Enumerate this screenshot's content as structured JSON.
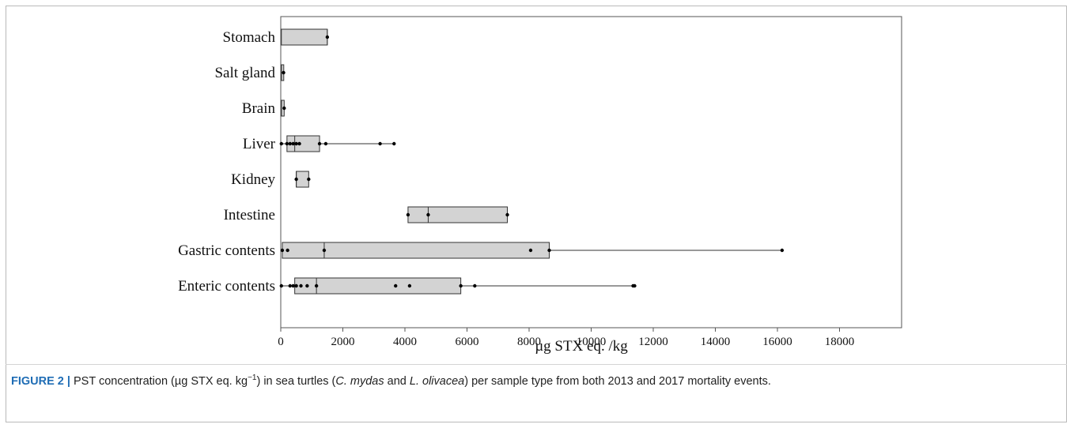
{
  "chart_data": {
    "type": "box",
    "xlabel": "µg STX eq. /kg",
    "xlim": [
      0,
      20000
    ],
    "xticks": [
      0,
      2000,
      4000,
      6000,
      8000,
      10000,
      12000,
      14000,
      16000,
      18000
    ],
    "xtick_labels": [
      "0",
      "2000",
      "4000",
      "6000",
      "8000",
      "10000",
      "12000",
      "14000",
      "16000",
      "18000"
    ],
    "grid": false,
    "legend": "none",
    "colors": {
      "box_fill": "#d3d3d3",
      "box_stroke": "#333333",
      "point": "#000000"
    },
    "categories": [
      {
        "label": "Stomach",
        "q1": 20,
        "median": 1500,
        "q3": 1500,
        "whisker_low": 20,
        "whisker_high": 1500,
        "points": [
          1500
        ]
      },
      {
        "label": "Salt gland",
        "q1": 20,
        "median": 20,
        "q3": 90,
        "whisker_low": 20,
        "whisker_high": 90,
        "points": [
          90
        ]
      },
      {
        "label": "Brain",
        "q1": 20,
        "median": 20,
        "q3": 110,
        "whisker_low": 20,
        "whisker_high": 110,
        "points": [
          110
        ]
      },
      {
        "label": "Liver",
        "q1": 200,
        "median": 450,
        "q3": 1250,
        "whisker_low": 20,
        "whisker_high": 3650,
        "points": [
          20,
          200,
          300,
          400,
          500,
          600,
          1250,
          1450,
          3200,
          3650
        ]
      },
      {
        "label": "Kidney",
        "q1": 500,
        "median": 500,
        "q3": 900,
        "whisker_low": 500,
        "whisker_high": 900,
        "points": [
          500,
          900
        ]
      },
      {
        "label": "Intestine",
        "q1": 4100,
        "median": 4750,
        "q3": 7300,
        "whisker_low": 4100,
        "whisker_high": 7300,
        "points": [
          4100,
          4750,
          7300
        ]
      },
      {
        "label": "Gastric contents",
        "q1": 50,
        "median": 1400,
        "q3": 8650,
        "whisker_low": 50,
        "whisker_high": 16150,
        "points": [
          50,
          220,
          1400,
          8050,
          8650,
          16150
        ]
      },
      {
        "label": "Enteric contents",
        "q1": 450,
        "median": 1150,
        "q3": 5800,
        "whisker_low": 20,
        "whisker_high": 11400,
        "points": [
          20,
          300,
          400,
          500,
          650,
          850,
          1150,
          3700,
          4150,
          5800,
          6250,
          11350,
          11400
        ]
      }
    ]
  },
  "caption": {
    "label": "FIGURE 2 |",
    "text_1": " PST concentration (µg STX eq. kg",
    "superscript": "−1",
    "text_2": ") in sea turtles (",
    "species_1": "C. mydas",
    "text_3": " and ",
    "species_2": "L. olivacea",
    "text_4": ") per sample type from both 2013 and 2017 mortality events."
  }
}
